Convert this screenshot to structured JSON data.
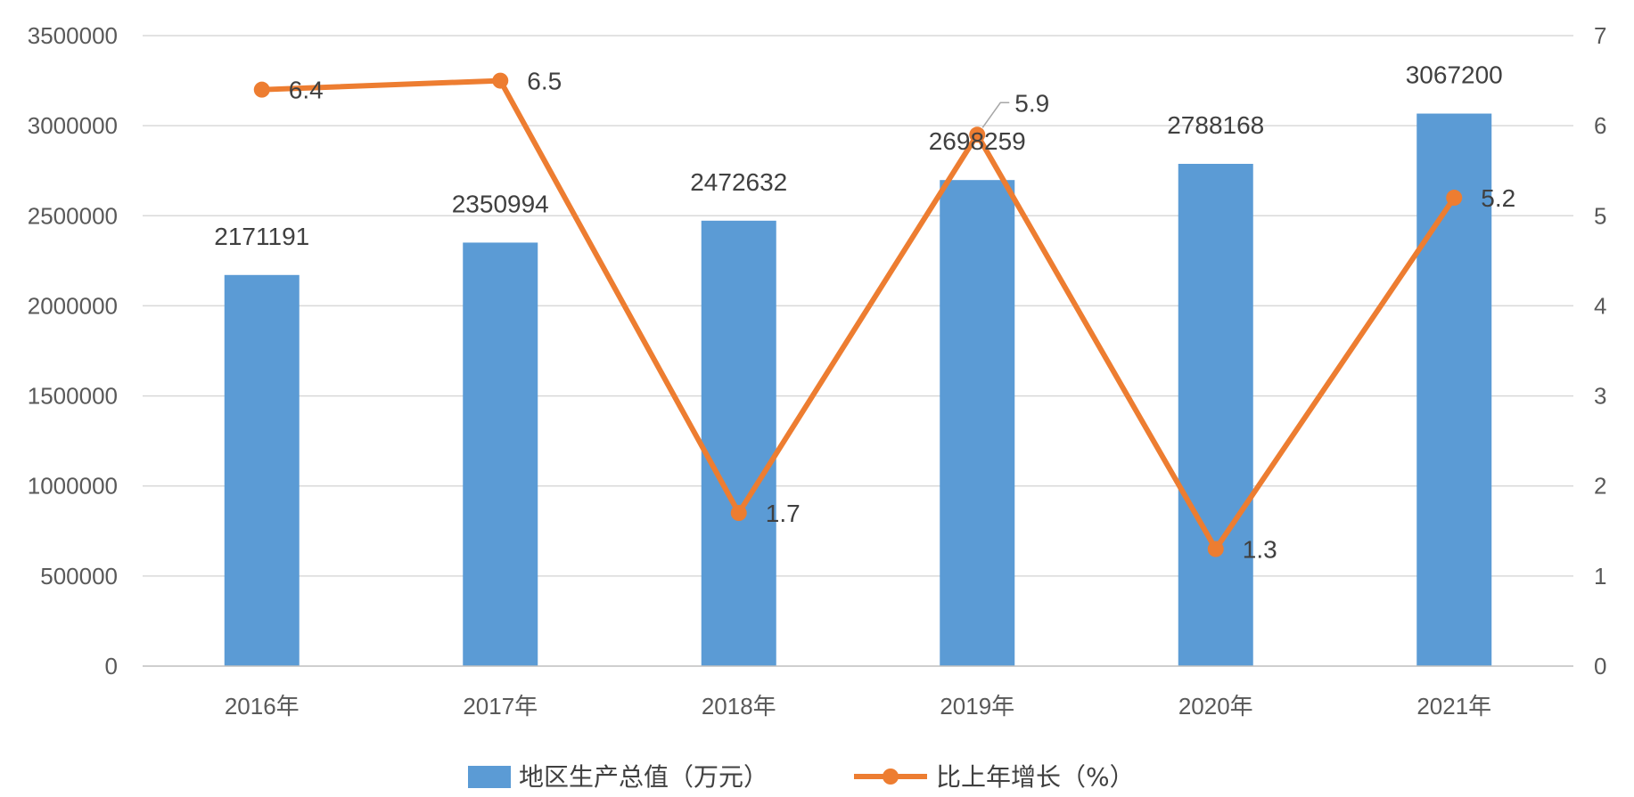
{
  "chart_data": {
    "type": "bar",
    "categories": [
      "2016年",
      "2017年",
      "2018年",
      "2019年",
      "2020年",
      "2021年"
    ],
    "series": [
      {
        "name": "地区生产总值（万元）",
        "type": "bar",
        "axis": "left",
        "color": "#5B9BD5",
        "values": [
          2171191,
          2350994,
          2472632,
          2698259,
          2788168,
          3067200
        ],
        "labels": [
          "2171191",
          "2350994",
          "2472632",
          "2698259",
          "2788168",
          "3067200"
        ]
      },
      {
        "name": "比上年增长（%）",
        "type": "line",
        "axis": "right",
        "color": "#ED7D31",
        "values": [
          6.4,
          6.5,
          1.7,
          5.9,
          1.3,
          5.2
        ],
        "labels": [
          "6.4",
          "6.5",
          "1.7",
          "5.9",
          "1.3",
          "5.2"
        ]
      }
    ],
    "y_left": {
      "ylim": [
        0,
        3500000
      ],
      "ticks": [
        "0",
        "500000",
        "1000000",
        "1500000",
        "2000000",
        "2500000",
        "3000000",
        "3500000"
      ]
    },
    "y_right": {
      "ylim": [
        0,
        7
      ],
      "ticks": [
        "0",
        "1",
        "2",
        "3",
        "4",
        "5",
        "6",
        "7"
      ]
    },
    "grid": true,
    "legend_position": "bottom"
  }
}
